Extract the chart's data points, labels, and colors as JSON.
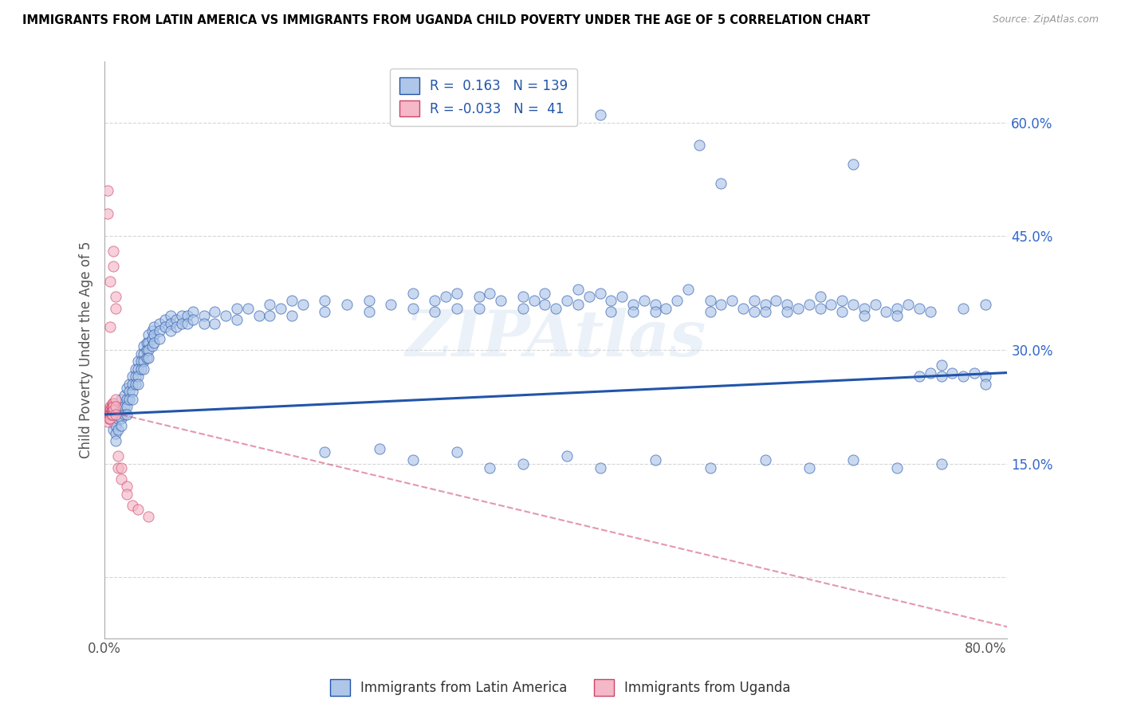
{
  "title": "IMMIGRANTS FROM LATIN AMERICA VS IMMIGRANTS FROM UGANDA CHILD POVERTY UNDER THE AGE OF 5 CORRELATION CHART",
  "source": "Source: ZipAtlas.com",
  "ylabel": "Child Poverty Under the Age of 5",
  "xlim": [
    0.0,
    0.82
  ],
  "ylim": [
    -0.08,
    0.68
  ],
  "yticks": [
    0.0,
    0.15,
    0.3,
    0.45,
    0.6
  ],
  "ytick_labels": [
    "",
    "15.0%",
    "30.0%",
    "45.0%",
    "60.0%"
  ],
  "legend_R_blue": "0.163",
  "legend_N_blue": "139",
  "legend_R_pink": "-0.033",
  "legend_N_pink": "41",
  "blue_color": "#aec6e8",
  "pink_color": "#f4b8c8",
  "line_blue": "#2255aa",
  "line_pink": "#cc4466",
  "blue_line_x": [
    0.0,
    0.82
  ],
  "blue_line_y": [
    0.215,
    0.27
  ],
  "pink_line_x": [
    0.0,
    0.82
  ],
  "pink_line_y": [
    0.22,
    -0.065
  ],
  "blue_scatter": [
    [
      0.005,
      0.22
    ],
    [
      0.007,
      0.215
    ],
    [
      0.008,
      0.195
    ],
    [
      0.008,
      0.205
    ],
    [
      0.01,
      0.215
    ],
    [
      0.01,
      0.2
    ],
    [
      0.01,
      0.19
    ],
    [
      0.01,
      0.18
    ],
    [
      0.012,
      0.225
    ],
    [
      0.012,
      0.21
    ],
    [
      0.012,
      0.195
    ],
    [
      0.015,
      0.235
    ],
    [
      0.015,
      0.22
    ],
    [
      0.015,
      0.21
    ],
    [
      0.015,
      0.2
    ],
    [
      0.018,
      0.24
    ],
    [
      0.018,
      0.225
    ],
    [
      0.018,
      0.215
    ],
    [
      0.02,
      0.25
    ],
    [
      0.02,
      0.235
    ],
    [
      0.02,
      0.225
    ],
    [
      0.02,
      0.215
    ],
    [
      0.022,
      0.255
    ],
    [
      0.022,
      0.245
    ],
    [
      0.022,
      0.235
    ],
    [
      0.025,
      0.265
    ],
    [
      0.025,
      0.255
    ],
    [
      0.025,
      0.245
    ],
    [
      0.025,
      0.235
    ],
    [
      0.028,
      0.275
    ],
    [
      0.028,
      0.265
    ],
    [
      0.028,
      0.255
    ],
    [
      0.03,
      0.285
    ],
    [
      0.03,
      0.275
    ],
    [
      0.03,
      0.265
    ],
    [
      0.03,
      0.255
    ],
    [
      0.033,
      0.295
    ],
    [
      0.033,
      0.285
    ],
    [
      0.033,
      0.275
    ],
    [
      0.035,
      0.305
    ],
    [
      0.035,
      0.295
    ],
    [
      0.035,
      0.285
    ],
    [
      0.035,
      0.275
    ],
    [
      0.038,
      0.31
    ],
    [
      0.038,
      0.3
    ],
    [
      0.038,
      0.29
    ],
    [
      0.04,
      0.32
    ],
    [
      0.04,
      0.31
    ],
    [
      0.04,
      0.3
    ],
    [
      0.04,
      0.29
    ],
    [
      0.043,
      0.325
    ],
    [
      0.043,
      0.315
    ],
    [
      0.043,
      0.305
    ],
    [
      0.045,
      0.33
    ],
    [
      0.045,
      0.32
    ],
    [
      0.045,
      0.31
    ],
    [
      0.05,
      0.335
    ],
    [
      0.05,
      0.325
    ],
    [
      0.05,
      0.315
    ],
    [
      0.055,
      0.34
    ],
    [
      0.055,
      0.33
    ],
    [
      0.06,
      0.345
    ],
    [
      0.06,
      0.335
    ],
    [
      0.06,
      0.325
    ],
    [
      0.065,
      0.34
    ],
    [
      0.065,
      0.33
    ],
    [
      0.07,
      0.345
    ],
    [
      0.07,
      0.335
    ],
    [
      0.075,
      0.345
    ],
    [
      0.075,
      0.335
    ],
    [
      0.08,
      0.35
    ],
    [
      0.08,
      0.34
    ],
    [
      0.09,
      0.345
    ],
    [
      0.09,
      0.335
    ],
    [
      0.1,
      0.35
    ],
    [
      0.1,
      0.335
    ],
    [
      0.11,
      0.345
    ],
    [
      0.12,
      0.355
    ],
    [
      0.12,
      0.34
    ],
    [
      0.13,
      0.355
    ],
    [
      0.14,
      0.345
    ],
    [
      0.15,
      0.36
    ],
    [
      0.15,
      0.345
    ],
    [
      0.16,
      0.355
    ],
    [
      0.17,
      0.365
    ],
    [
      0.17,
      0.345
    ],
    [
      0.18,
      0.36
    ],
    [
      0.2,
      0.365
    ],
    [
      0.2,
      0.35
    ],
    [
      0.22,
      0.36
    ],
    [
      0.24,
      0.365
    ],
    [
      0.24,
      0.35
    ],
    [
      0.26,
      0.36
    ],
    [
      0.28,
      0.375
    ],
    [
      0.28,
      0.355
    ],
    [
      0.3,
      0.365
    ],
    [
      0.3,
      0.35
    ],
    [
      0.31,
      0.37
    ],
    [
      0.32,
      0.375
    ],
    [
      0.32,
      0.355
    ],
    [
      0.34,
      0.37
    ],
    [
      0.34,
      0.355
    ],
    [
      0.35,
      0.375
    ],
    [
      0.36,
      0.365
    ],
    [
      0.38,
      0.37
    ],
    [
      0.38,
      0.355
    ],
    [
      0.39,
      0.365
    ],
    [
      0.4,
      0.375
    ],
    [
      0.4,
      0.36
    ],
    [
      0.41,
      0.355
    ],
    [
      0.42,
      0.365
    ],
    [
      0.43,
      0.38
    ],
    [
      0.43,
      0.36
    ],
    [
      0.44,
      0.37
    ],
    [
      0.45,
      0.375
    ],
    [
      0.46,
      0.365
    ],
    [
      0.46,
      0.35
    ],
    [
      0.47,
      0.37
    ],
    [
      0.48,
      0.36
    ],
    [
      0.48,
      0.35
    ],
    [
      0.49,
      0.365
    ],
    [
      0.5,
      0.36
    ],
    [
      0.5,
      0.35
    ],
    [
      0.51,
      0.355
    ],
    [
      0.52,
      0.365
    ],
    [
      0.53,
      0.38
    ],
    [
      0.55,
      0.365
    ],
    [
      0.55,
      0.35
    ],
    [
      0.56,
      0.36
    ],
    [
      0.57,
      0.365
    ],
    [
      0.58,
      0.355
    ],
    [
      0.59,
      0.365
    ],
    [
      0.59,
      0.35
    ],
    [
      0.6,
      0.36
    ],
    [
      0.6,
      0.35
    ],
    [
      0.61,
      0.365
    ],
    [
      0.62,
      0.36
    ],
    [
      0.62,
      0.35
    ],
    [
      0.63,
      0.355
    ],
    [
      0.64,
      0.36
    ],
    [
      0.65,
      0.355
    ],
    [
      0.65,
      0.37
    ],
    [
      0.66,
      0.36
    ],
    [
      0.67,
      0.365
    ],
    [
      0.67,
      0.35
    ],
    [
      0.68,
      0.36
    ],
    [
      0.69,
      0.355
    ],
    [
      0.69,
      0.345
    ],
    [
      0.7,
      0.36
    ],
    [
      0.71,
      0.35
    ],
    [
      0.72,
      0.355
    ],
    [
      0.72,
      0.345
    ],
    [
      0.73,
      0.36
    ],
    [
      0.74,
      0.265
    ],
    [
      0.74,
      0.355
    ],
    [
      0.75,
      0.27
    ],
    [
      0.75,
      0.35
    ],
    [
      0.76,
      0.265
    ],
    [
      0.76,
      0.28
    ],
    [
      0.77,
      0.27
    ],
    [
      0.78,
      0.265
    ],
    [
      0.78,
      0.355
    ],
    [
      0.79,
      0.27
    ],
    [
      0.8,
      0.265
    ],
    [
      0.8,
      0.36
    ],
    [
      0.54,
      0.57
    ],
    [
      0.68,
      0.545
    ],
    [
      0.45,
      0.61
    ],
    [
      0.56,
      0.52
    ],
    [
      0.2,
      0.165
    ],
    [
      0.25,
      0.17
    ],
    [
      0.28,
      0.155
    ],
    [
      0.32,
      0.165
    ],
    [
      0.35,
      0.145
    ],
    [
      0.38,
      0.15
    ],
    [
      0.42,
      0.16
    ],
    [
      0.45,
      0.145
    ],
    [
      0.5,
      0.155
    ],
    [
      0.55,
      0.145
    ],
    [
      0.6,
      0.155
    ],
    [
      0.64,
      0.145
    ],
    [
      0.68,
      0.155
    ],
    [
      0.72,
      0.145
    ],
    [
      0.76,
      0.15
    ],
    [
      0.8,
      0.255
    ]
  ],
  "pink_scatter": [
    [
      0.003,
      0.22
    ],
    [
      0.003,
      0.215
    ],
    [
      0.003,
      0.21
    ],
    [
      0.003,
      0.205
    ],
    [
      0.004,
      0.22
    ],
    [
      0.004,
      0.215
    ],
    [
      0.004,
      0.21
    ],
    [
      0.005,
      0.225
    ],
    [
      0.005,
      0.22
    ],
    [
      0.005,
      0.215
    ],
    [
      0.005,
      0.21
    ],
    [
      0.006,
      0.225
    ],
    [
      0.006,
      0.22
    ],
    [
      0.006,
      0.215
    ],
    [
      0.007,
      0.23
    ],
    [
      0.007,
      0.225
    ],
    [
      0.007,
      0.22
    ],
    [
      0.007,
      0.215
    ],
    [
      0.008,
      0.23
    ],
    [
      0.008,
      0.225
    ],
    [
      0.008,
      0.22
    ],
    [
      0.01,
      0.235
    ],
    [
      0.01,
      0.225
    ],
    [
      0.01,
      0.215
    ],
    [
      0.012,
      0.16
    ],
    [
      0.012,
      0.145
    ],
    [
      0.015,
      0.145
    ],
    [
      0.015,
      0.13
    ],
    [
      0.02,
      0.12
    ],
    [
      0.02,
      0.11
    ],
    [
      0.025,
      0.095
    ],
    [
      0.03,
      0.09
    ],
    [
      0.04,
      0.08
    ],
    [
      0.005,
      0.33
    ],
    [
      0.005,
      0.39
    ],
    [
      0.008,
      0.41
    ],
    [
      0.008,
      0.43
    ],
    [
      0.003,
      0.51
    ],
    [
      0.003,
      0.48
    ],
    [
      0.01,
      0.355
    ],
    [
      0.01,
      0.37
    ]
  ]
}
